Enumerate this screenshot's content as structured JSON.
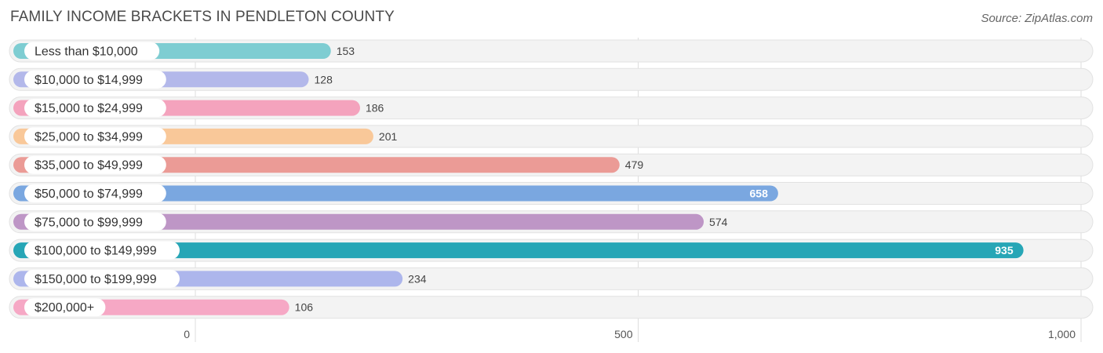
{
  "header": {
    "title": "FAMILY INCOME BRACKETS IN PENDLETON COUNTY",
    "source": "Source: ZipAtlas.com"
  },
  "chart_data": {
    "type": "bar",
    "orientation": "horizontal",
    "title": "FAMILY INCOME BRACKETS IN PENDLETON COUNTY",
    "categories": [
      "Less than $10,000",
      "$10,000 to $14,999",
      "$15,000 to $24,999",
      "$25,000 to $34,999",
      "$35,000 to $49,999",
      "$50,000 to $74,999",
      "$75,000 to $99,999",
      "$100,000 to $149,999",
      "$150,000 to $199,999",
      "$200,000+"
    ],
    "values": [
      153,
      128,
      186,
      201,
      479,
      658,
      574,
      935,
      234,
      106
    ],
    "value_labels": [
      "153",
      "128",
      "186",
      "201",
      "479",
      "658",
      "574",
      "935",
      "234",
      "106"
    ],
    "colors": [
      "#7ecdd2",
      "#b3b8ea",
      "#f4a3bd",
      "#f9c899",
      "#eb9b96",
      "#7aa7e0",
      "#be96c6",
      "#27a6b6",
      "#adb6ec",
      "#f6a8c5"
    ],
    "xlim": [
      0,
      1000
    ],
    "xticks": [
      0,
      500,
      1000
    ],
    "xtick_labels": [
      "0",
      "500",
      "1,000"
    ],
    "grid": true
  }
}
